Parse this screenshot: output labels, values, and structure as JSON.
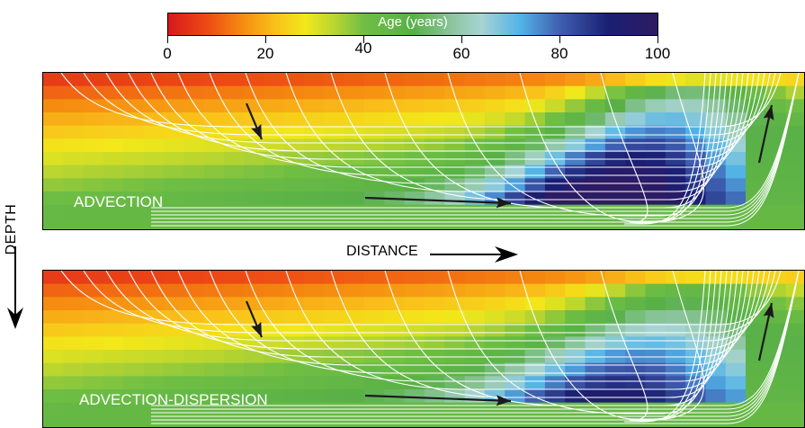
{
  "colorbar": {
    "title": "Age (years)",
    "ticks": [
      "0",
      "20",
      "40",
      "60",
      "80",
      "100"
    ]
  },
  "axes": {
    "depth_label": "DEPTH",
    "distance_label": "DISTANCE"
  },
  "panels": [
    {
      "label": "ADVECTION"
    },
    {
      "label": "ADVECTION-DISPERSION"
    }
  ],
  "colors": {
    "streamline": "#ffffff",
    "arrow": "#1a1a1a",
    "background": "#ffffff"
  }
}
